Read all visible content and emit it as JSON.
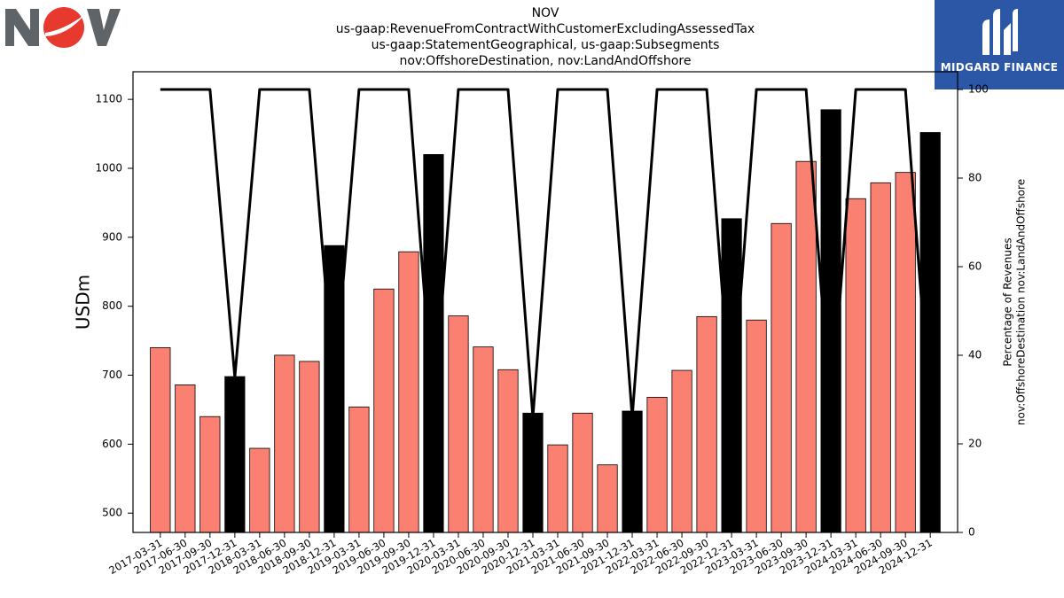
{
  "logo_left": {
    "name": "NOV logo",
    "text": "NOV"
  },
  "logo_right": {
    "brand_text": "MIDGARD FINANCE"
  },
  "title_lines": [
    "NOV",
    "us-gaap:RevenueFromContractWithCustomerExcludingAssessedTax",
    "us-gaap:StatementGeographical, us-gaap:Subsegments",
    "nov:OffshoreDestination, nov:LandAndOffshore"
  ],
  "chart_data": {
    "type": "bar",
    "ylabel": "USDm",
    "y2label_lines": [
      "Percentage of Revenues",
      "nov:OffshoreDestination nov:LandAndOffshore"
    ],
    "ylim": [
      472,
      1140
    ],
    "y_ticks": [
      500,
      600,
      700,
      800,
      900,
      1000,
      1100
    ],
    "y2lim": [
      0,
      104
    ],
    "y2_ticks": [
      0,
      20,
      40,
      60,
      80,
      100
    ],
    "grid": false,
    "colors": {
      "quarter": "#fa8072",
      "year_end": "#000000",
      "line": "#000000"
    },
    "categories": [
      "2017-03-31",
      "2017-06-30",
      "2017-09-30",
      "2017-12-31",
      "2018-03-31",
      "2018-06-30",
      "2018-09-30",
      "2018-12-31",
      "2019-03-31",
      "2019-06-30",
      "2019-09-30",
      "2019-12-31",
      "2020-03-31",
      "2020-06-30",
      "2020-09-30",
      "2020-12-31",
      "2021-03-31",
      "2021-06-30",
      "2021-09-30",
      "2021-12-31",
      "2022-03-31",
      "2022-06-30",
      "2022-09-30",
      "2022-12-31",
      "2023-03-31",
      "2023-06-30",
      "2023-09-30",
      "2023-12-31",
      "2024-03-31",
      "2024-06-30",
      "2024-09-30",
      "2024-12-31"
    ],
    "values": [
      740,
      686,
      640,
      698,
      594,
      729,
      720,
      888,
      654,
      825,
      879,
      1020,
      786,
      741,
      708,
      645,
      599,
      645,
      570,
      648,
      668,
      707,
      785,
      927,
      780,
      920,
      1010,
      1085,
      956,
      979,
      994,
      1052
    ],
    "year_end": [
      false,
      false,
      false,
      true,
      false,
      false,
      false,
      true,
      false,
      false,
      false,
      true,
      false,
      false,
      false,
      true,
      false,
      false,
      false,
      true,
      false,
      false,
      false,
      true,
      false,
      false,
      false,
      true,
      false,
      false,
      false,
      true
    ],
    "percentage": [
      100,
      100,
      100,
      35,
      100,
      100,
      100,
      32,
      100,
      100,
      100,
      27,
      100,
      100,
      100,
      26,
      100,
      100,
      100,
      26,
      100,
      100,
      100,
      27,
      100,
      100,
      100,
      26,
      100,
      100,
      100,
      26
    ]
  }
}
